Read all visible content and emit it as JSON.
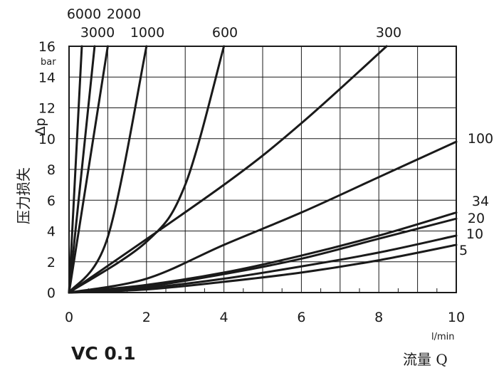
{
  "chart_data": {
    "type": "line",
    "title": "VC 0.1",
    "xlabel": "流量 Q",
    "xunit": "l/min",
    "ylabel_cjk": "压力损失",
    "ylabel_symbol": "Δp",
    "yunit": "bar",
    "xlim": [
      0,
      10
    ],
    "ylim": [
      0,
      16
    ],
    "x_ticks": [
      "0",
      "2",
      "4",
      "6",
      "8",
      "10"
    ],
    "y_ticks": [
      "0",
      "2",
      "4",
      "6",
      "8",
      "10",
      "12",
      "14",
      "16"
    ],
    "grid": true,
    "series": [
      {
        "name": "6000",
        "label_position": "top",
        "points": [
          [
            0,
            0
          ],
          [
            0.33,
            16
          ]
        ]
      },
      {
        "name": "3000",
        "label_position": "top",
        "points": [
          [
            0,
            0
          ],
          [
            0.66,
            16
          ]
        ]
      },
      {
        "name": "2000",
        "label_position": "top",
        "points": [
          [
            0,
            0
          ],
          [
            1.0,
            16
          ]
        ]
      },
      {
        "name": "1000",
        "label_position": "top",
        "points": [
          [
            0,
            0
          ],
          [
            1.0,
            3.6
          ],
          [
            2.0,
            16
          ]
        ]
      },
      {
        "name": "600",
        "label_position": "top",
        "points": [
          [
            0,
            0
          ],
          [
            2.0,
            3.3
          ],
          [
            3.0,
            7.0
          ],
          [
            4.0,
            16
          ]
        ]
      },
      {
        "name": "300",
        "label_position": "top",
        "points": [
          [
            0,
            0
          ],
          [
            4.0,
            7.0
          ],
          [
            6.0,
            11.0
          ],
          [
            8.2,
            16
          ]
        ]
      },
      {
        "name": "100",
        "label_position": "right",
        "points": [
          [
            0,
            0
          ],
          [
            2.0,
            0.9
          ],
          [
            4.0,
            3.1
          ],
          [
            6.0,
            5.2
          ],
          [
            8.0,
            7.5
          ],
          [
            10.0,
            9.8
          ]
        ]
      },
      {
        "name": "34",
        "label_position": "right",
        "points": [
          [
            0,
            0
          ],
          [
            2.0,
            0.5
          ],
          [
            4.0,
            1.3
          ],
          [
            6.0,
            2.4
          ],
          [
            8.0,
            3.7
          ],
          [
            10.0,
            5.2
          ]
        ]
      },
      {
        "name": "20",
        "label_position": "right",
        "points": [
          [
            0,
            0
          ],
          [
            2.0,
            0.4
          ],
          [
            4.0,
            1.2
          ],
          [
            6.0,
            2.2
          ],
          [
            8.0,
            3.5
          ],
          [
            10.0,
            4.8
          ]
        ]
      },
      {
        "name": "10",
        "label_position": "right",
        "points": [
          [
            0,
            0
          ],
          [
            2.0,
            0.3
          ],
          [
            4.0,
            0.9
          ],
          [
            6.0,
            1.7
          ],
          [
            8.0,
            2.6
          ],
          [
            10.0,
            3.7
          ]
        ]
      },
      {
        "name": "5",
        "label_position": "right",
        "points": [
          [
            0,
            0
          ],
          [
            2.0,
            0.2
          ],
          [
            4.0,
            0.7
          ],
          [
            6.0,
            1.3
          ],
          [
            8.0,
            2.1
          ],
          [
            10.0,
            3.1
          ]
        ]
      }
    ]
  }
}
